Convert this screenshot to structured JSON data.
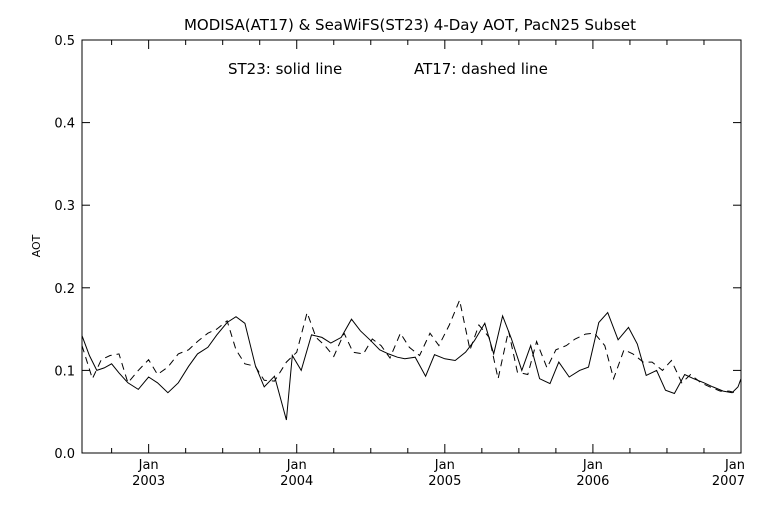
{
  "chart_data": {
    "type": "line",
    "title": "MODISA(AT17) & SeaWiFS(ST23) 4-Day AOT, PacN25 Subset",
    "annotation_left": "ST23: solid line",
    "annotation_right": "AT17: dashed line",
    "ylabel": "AOT",
    "xlabel": "",
    "ylim": [
      0.0,
      0.5
    ],
    "xlim": [
      2002.55,
      2007.0
    ],
    "yticks": [
      0.0,
      0.1,
      0.2,
      0.3,
      0.4,
      0.5
    ],
    "ytick_labels": [
      "0.0",
      "0.1",
      "0.2",
      "0.3",
      "0.4",
      "0.5"
    ],
    "xticks": [
      2003,
      2004,
      2005,
      2006,
      2007
    ],
    "xtick_month_label": "Jan",
    "xtick_year_labels": [
      "2003",
      "2004",
      "2005",
      "2006",
      "2007"
    ],
    "grid": false,
    "series": [
      {
        "name": "ST23",
        "style": "solid",
        "x": [
          2002.55,
          2002.6,
          2002.65,
          2002.7,
          2002.75,
          2002.8,
          2002.86,
          2002.93,
          2003.0,
          2003.06,
          2003.13,
          2003.2,
          2003.27,
          2003.33,
          2003.4,
          2003.46,
          2003.53,
          2003.59,
          2003.65,
          2003.72,
          2003.78,
          2003.85,
          2003.93,
          2003.97,
          2004.03,
          2004.1,
          2004.17,
          2004.23,
          2004.3,
          2004.37,
          2004.43,
          2004.5,
          2004.56,
          2004.62,
          2004.68,
          2004.73,
          2004.8,
          2004.87,
          2004.93,
          2005.0,
          2005.07,
          2005.14,
          2005.2,
          2005.27,
          2005.33,
          2005.39,
          2005.45,
          2005.52,
          2005.58,
          2005.64,
          2005.71,
          2005.77,
          2005.84,
          2005.91,
          2005.97,
          2006.04,
          2006.1,
          2006.17,
          2006.24,
          2006.3,
          2006.36,
          2006.43,
          2006.49,
          2006.55,
          2006.62,
          2006.68,
          2006.75,
          2006.81,
          2006.88,
          2006.94,
          2006.98,
          2007.0
        ],
        "values": [
          0.142,
          0.118,
          0.1,
          0.103,
          0.108,
          0.097,
          0.085,
          0.077,
          0.092,
          0.085,
          0.073,
          0.085,
          0.105,
          0.12,
          0.128,
          0.143,
          0.158,
          0.165,
          0.157,
          0.106,
          0.08,
          0.093,
          0.04,
          0.118,
          0.1,
          0.143,
          0.14,
          0.133,
          0.14,
          0.162,
          0.148,
          0.136,
          0.125,
          0.12,
          0.116,
          0.114,
          0.116,
          0.093,
          0.119,
          0.114,
          0.112,
          0.122,
          0.136,
          0.157,
          0.12,
          0.166,
          0.138,
          0.1,
          0.13,
          0.09,
          0.084,
          0.11,
          0.092,
          0.1,
          0.104,
          0.158,
          0.17,
          0.137,
          0.152,
          0.132,
          0.094,
          0.1,
          0.076,
          0.072,
          0.095,
          0.09,
          0.085,
          0.08,
          0.075,
          0.073,
          0.08,
          0.09
        ]
      },
      {
        "name": "AT17",
        "style": "dashed",
        "x": [
          2002.55,
          2002.62,
          2002.68,
          2002.74,
          2002.8,
          2002.86,
          2002.93,
          2003.0,
          2003.06,
          2003.13,
          2003.2,
          2003.27,
          2003.33,
          2003.4,
          2003.46,
          2003.53,
          2003.59,
          2003.65,
          2003.72,
          2003.78,
          2003.85,
          2003.93,
          2004.0,
          2004.07,
          2004.13,
          2004.19,
          2004.25,
          2004.32,
          2004.38,
          2004.45,
          2004.51,
          2004.57,
          2004.63,
          2004.7,
          2004.76,
          2004.83,
          2004.9,
          2004.96,
          2005.03,
          2005.1,
          2005.17,
          2005.23,
          2005.3,
          2005.36,
          2005.43,
          2005.49,
          2005.56,
          2005.62,
          2005.69,
          2005.75,
          2005.82,
          2005.88,
          2005.95,
          2006.01,
          2006.08,
          2006.14,
          2006.21,
          2006.27,
          2006.34,
          2006.4,
          2006.47,
          2006.53,
          2006.6,
          2006.66,
          2006.73,
          2006.79,
          2006.86,
          2006.92,
          2006.98
        ],
        "values": [
          0.13,
          0.09,
          0.113,
          0.118,
          0.12,
          0.085,
          0.1,
          0.113,
          0.095,
          0.104,
          0.12,
          0.125,
          0.135,
          0.145,
          0.15,
          0.16,
          0.125,
          0.108,
          0.105,
          0.088,
          0.087,
          0.11,
          0.122,
          0.17,
          0.14,
          0.13,
          0.117,
          0.145,
          0.122,
          0.12,
          0.138,
          0.13,
          0.115,
          0.145,
          0.128,
          0.118,
          0.145,
          0.13,
          0.155,
          0.185,
          0.125,
          0.155,
          0.14,
          0.09,
          0.148,
          0.098,
          0.095,
          0.135,
          0.103,
          0.125,
          0.13,
          0.138,
          0.144,
          0.145,
          0.13,
          0.09,
          0.125,
          0.12,
          0.11,
          0.11,
          0.1,
          0.112,
          0.085,
          0.095,
          0.085,
          0.08,
          0.075,
          0.075,
          0.072
        ]
      }
    ]
  }
}
